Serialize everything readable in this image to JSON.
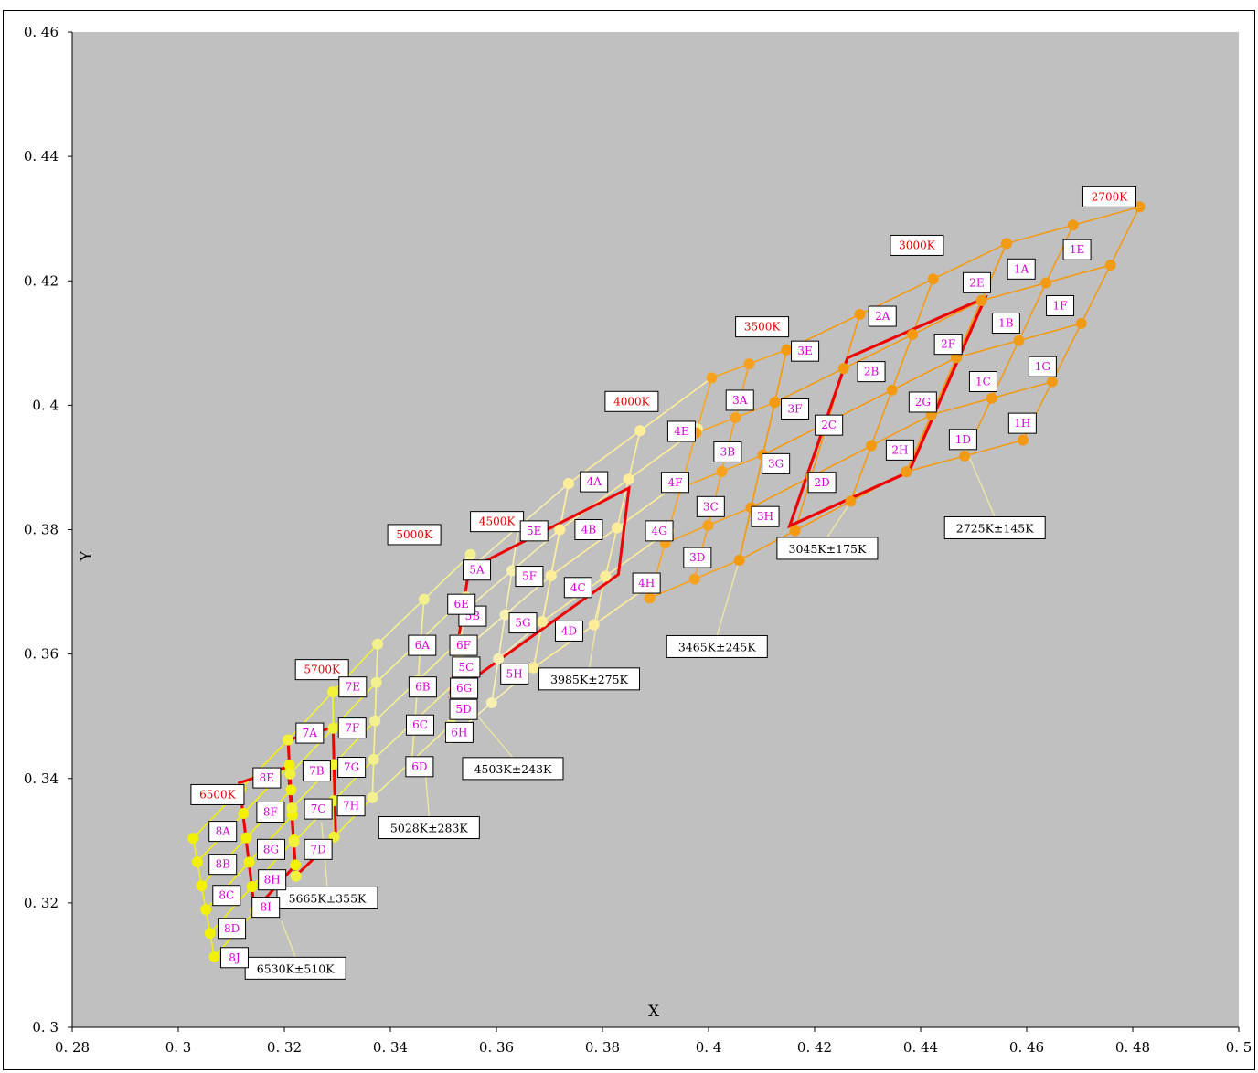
{
  "chart_data": {
    "type": "scatter",
    "title": "",
    "xlabel": "X",
    "ylabel": "Y",
    "xlim": [
      0.28,
      0.5
    ],
    "ylim": [
      0.3,
      0.46
    ],
    "x_ticks": [
      "0.28",
      "0.3",
      "0.32",
      "0.34",
      "0.36",
      "0.38",
      "0.4",
      "0.42",
      "0.44",
      "0.46",
      "0.48",
      "0.5"
    ],
    "y_ticks": [
      "0.3",
      "0.32",
      "0.34",
      "0.36",
      "0.38",
      "0.4",
      "0.42",
      "0.44",
      "0.46"
    ],
    "grid": false,
    "plot_background": "#c0c0c0",
    "colors": {
      "g6500": "#f2f200",
      "g5700": "#f2f238",
      "g5000": "#f3f090",
      "g4500": "#f8f0b0",
      "g4000": "#ffee99",
      "g3500": "#f6a21e",
      "g3000": "#f49a10",
      "g2700": "#f19a16",
      "quad": "#ee0000",
      "cct_text": "#e00000",
      "bin_text": "#d400d4"
    },
    "groups": [
      {
        "id": "g6500",
        "cct_label": "6500K",
        "cct_at": [
          0.3074,
          0.3374
        ],
        "corners": [
          [
            0.3028,
            0.3304
          ],
          [
            0.3207,
            0.3462
          ],
          [
            0.3221,
            0.3261
          ],
          [
            0.3068,
            0.3113
          ]
        ],
        "cols": 2,
        "rows": 5
      },
      {
        "id": "g5700",
        "cct_label": "5700K",
        "cct_at": [
          0.3271,
          0.3575
        ],
        "corners": [
          [
            0.3207,
            0.3462
          ],
          [
            0.3376,
            0.3616
          ],
          [
            0.3366,
            0.3369
          ],
          [
            0.3222,
            0.3243
          ]
        ],
        "cols": 2,
        "rows": 4
      },
      {
        "id": "g5000",
        "cct_label": "5000K",
        "cct_at": [
          0.3445,
          0.3792
        ],
        "corners": [
          [
            0.3376,
            0.3616
          ],
          [
            0.3551,
            0.376
          ],
          [
            0.3515,
            0.3487
          ],
          [
            0.3366,
            0.3369
          ]
        ],
        "cols": 2,
        "rows": 4
      },
      {
        "id": "g4500",
        "cct_label": "4500K",
        "cct_at": [
          0.3601,
          0.3813
        ],
        "corners": [
          [
            0.3548,
            0.3736
          ],
          [
            0.3736,
            0.3874
          ],
          [
            0.367,
            0.3578
          ],
          [
            0.3512,
            0.3465
          ]
        ],
        "cols": 2,
        "rows": 4
      },
      {
        "id": "g4000",
        "cct_label": "4000K",
        "cct_at": [
          0.3855,
          0.4006
        ],
        "corners": [
          [
            0.3736,
            0.3874
          ],
          [
            0.4006,
            0.4044
          ],
          [
            0.3898,
            0.3716
          ],
          [
            0.367,
            0.3578
          ]
        ],
        "cols": 2,
        "rows": 4
      },
      {
        "id": "g3500",
        "cct_label": "3500K",
        "cct_at": [
          0.4101,
          0.4126
        ],
        "corners": [
          [
            0.4006,
            0.4044
          ],
          [
            0.4147,
            0.4089
          ],
          [
            0.4058,
            0.3751
          ],
          [
            0.3889,
            0.369
          ]
        ],
        "cols": 2,
        "rows": 4
      },
      {
        "id": "g3000",
        "cct_label": "3000K",
        "cct_at": [
          0.4393,
          0.4257
        ],
        "corners": [
          [
            0.4147,
            0.4089
          ],
          [
            0.4562,
            0.426
          ],
          [
            0.4373,
            0.3893
          ],
          [
            0.4058,
            0.3751
          ]
        ],
        "cols": 3,
        "rows": 4
      },
      {
        "id": "g2700",
        "cct_label": "2700K",
        "cct_at": [
          0.4756,
          0.4335
        ],
        "corners": [
          [
            0.4562,
            0.426
          ],
          [
            0.4813,
            0.4319
          ],
          [
            0.4593,
            0.3944
          ],
          [
            0.4373,
            0.3893
          ]
        ],
        "cols": 2,
        "rows": 4
      }
    ],
    "bin_labels": [
      {
        "text": "1A",
        "at": [
          0.459,
          0.4219
        ]
      },
      {
        "text": "1B",
        "at": [
          0.4561,
          0.4132
        ]
      },
      {
        "text": "1C",
        "at": [
          0.4518,
          0.4038
        ]
      },
      {
        "text": "1D",
        "at": [
          0.448,
          0.3945
        ]
      },
      {
        "text": "1E",
        "at": [
          0.4695,
          0.425
        ]
      },
      {
        "text": "1F",
        "at": [
          0.4663,
          0.416
        ]
      },
      {
        "text": "1G",
        "at": [
          0.463,
          0.4062
        ]
      },
      {
        "text": "1H",
        "at": [
          0.4592,
          0.3971
        ]
      },
      {
        "text": "2A",
        "at": [
          0.4328,
          0.4143
        ]
      },
      {
        "text": "2B",
        "at": [
          0.4307,
          0.4054
        ]
      },
      {
        "text": "2C",
        "at": [
          0.4227,
          0.3968
        ]
      },
      {
        "text": "2D",
        "at": [
          0.4214,
          0.3876
        ]
      },
      {
        "text": "2E",
        "at": [
          0.4506,
          0.4197
        ]
      },
      {
        "text": "2F",
        "at": [
          0.4452,
          0.4098
        ]
      },
      {
        "text": "2G",
        "at": [
          0.4404,
          0.4005
        ]
      },
      {
        "text": "2H",
        "at": [
          0.4361,
          0.3928
        ]
      },
      {
        "text": "3A",
        "at": [
          0.4059,
          0.4008
        ]
      },
      {
        "text": "3B",
        "at": [
          0.4036,
          0.3925
        ]
      },
      {
        "text": "3C",
        "at": [
          0.4004,
          0.3837
        ]
      },
      {
        "text": "3D",
        "at": [
          0.3979,
          0.3755
        ]
      },
      {
        "text": "3E",
        "at": [
          0.4182,
          0.4087
        ]
      },
      {
        "text": "3F",
        "at": [
          0.4163,
          0.3994
        ]
      },
      {
        "text": "3G",
        "at": [
          0.4127,
          0.3906
        ]
      },
      {
        "text": "3H",
        "at": [
          0.4107,
          0.3821
        ]
      },
      {
        "text": "4A",
        "at": [
          0.3784,
          0.3877
        ]
      },
      {
        "text": "4B",
        "at": [
          0.3774,
          0.38
        ]
      },
      {
        "text": "4C",
        "at": [
          0.3754,
          0.3707
        ]
      },
      {
        "text": "4D",
        "at": [
          0.3737,
          0.3637
        ]
      },
      {
        "text": "4E",
        "at": [
          0.3949,
          0.3958
        ]
      },
      {
        "text": "4F",
        "at": [
          0.3937,
          0.3876
        ]
      },
      {
        "text": "4G",
        "at": [
          0.3907,
          0.3798
        ]
      },
      {
        "text": "4H",
        "at": [
          0.3883,
          0.3714
        ]
      },
      {
        "text": "5A",
        "at": [
          0.3563,
          0.3735
        ]
      },
      {
        "text": "5B",
        "at": [
          0.3555,
          0.3661
        ]
      },
      {
        "text": "5C",
        "at": [
          0.3543,
          0.3579
        ]
      },
      {
        "text": "5D",
        "at": [
          0.3538,
          0.3511
        ]
      },
      {
        "text": "5E",
        "at": [
          0.3671,
          0.3798
        ]
      },
      {
        "text": "5F",
        "at": [
          0.3662,
          0.3725
        ]
      },
      {
        "text": "5G",
        "at": [
          0.365,
          0.365
        ]
      },
      {
        "text": "5H",
        "at": [
          0.3634,
          0.3568
        ]
      },
      {
        "text": "6A",
        "at": [
          0.346,
          0.3614
        ]
      },
      {
        "text": "6B",
        "at": [
          0.3461,
          0.3547
        ]
      },
      {
        "text": "6C",
        "at": [
          0.3456,
          0.3486
        ]
      },
      {
        "text": "6D",
        "at": [
          0.3455,
          0.3419
        ]
      },
      {
        "text": "6E",
        "at": [
          0.3534,
          0.368
        ]
      },
      {
        "text": "6F",
        "at": [
          0.3538,
          0.3614
        ]
      },
      {
        "text": "6G",
        "at": [
          0.3539,
          0.3545
        ]
      },
      {
        "text": "6H",
        "at": [
          0.353,
          0.3474
        ]
      },
      {
        "text": "7A",
        "at": [
          0.3248,
          0.3473
        ]
      },
      {
        "text": "7B",
        "at": [
          0.3261,
          0.3412
        ]
      },
      {
        "text": "7C",
        "at": [
          0.3264,
          0.3351
        ]
      },
      {
        "text": "7D",
        "at": [
          0.3264,
          0.3286
        ]
      },
      {
        "text": "7E",
        "at": [
          0.3329,
          0.3547
        ]
      },
      {
        "text": "7F",
        "at": [
          0.3328,
          0.3481
        ]
      },
      {
        "text": "7G",
        "at": [
          0.3327,
          0.3418
        ]
      },
      {
        "text": "7H",
        "at": [
          0.3326,
          0.3356
        ]
      },
      {
        "text": "8A",
        "at": [
          0.3084,
          0.3315
        ]
      },
      {
        "text": "8B",
        "at": [
          0.3084,
          0.3262
        ]
      },
      {
        "text": "8C",
        "at": [
          0.3091,
          0.3212
        ]
      },
      {
        "text": "8D",
        "at": [
          0.3101,
          0.3159
        ]
      },
      {
        "text": "8E",
        "at": [
          0.3167,
          0.3401
        ]
      },
      {
        "text": "8F",
        "at": [
          0.3174,
          0.3346
        ]
      },
      {
        "text": "8G",
        "at": [
          0.3175,
          0.3286
        ]
      },
      {
        "text": "8H",
        "at": [
          0.3177,
          0.3237
        ]
      },
      {
        "text": "8I",
        "at": [
          0.3165,
          0.3193
        ]
      },
      {
        "text": "8J",
        "at": [
          0.3106,
          0.3112
        ]
      }
    ],
    "nominal_ranges": [
      {
        "label": "2725K±145K",
        "corners": [
          [
            0.4813,
            0.4319
          ],
          [
            0.4562,
            0.426
          ],
          [
            0.4373,
            0.3893
          ],
          [
            0.4593,
            0.3944
          ]
        ],
        "quad": [
          [
            0.4262,
            0.4076
          ],
          [
            0.4522,
            0.4173
          ],
          [
            0.4378,
            0.3893
          ],
          [
            0.4153,
            0.3806
          ]
        ],
        "text_at": [
          0.454,
          0.3803
        ],
        "leader_from": [
          0.4475,
          0.395
        ]
      },
      {
        "label": "3045K±175K",
        "corners": [],
        "quad": [
          [
            0.4262,
            0.4076
          ],
          [
            0.4522,
            0.4173
          ],
          [
            0.4378,
            0.3893
          ],
          [
            0.4153,
            0.3806
          ]
        ],
        "text_at": [
          0.4224,
          0.377
        ],
        "leader_from": [
          0.428,
          0.386
        ]
      },
      {
        "label": "3465K±245K",
        "corners": [],
        "quad": [],
        "text_at": [
          0.4016,
          0.3612
        ],
        "leader_from": [
          0.4058,
          0.3751
        ]
      },
      {
        "label": "3985K±275K",
        "corners": [],
        "quad": [
          [
            0.3548,
            0.3736
          ],
          [
            0.385,
            0.3867
          ],
          [
            0.383,
            0.3728
          ],
          [
            0.3513,
            0.3534
          ]
        ],
        "text_at": [
          0.3775,
          0.356
        ],
        "leader_from": [
          0.3795,
          0.368
        ]
      },
      {
        "label": "4503K±243K",
        "corners": [],
        "quad": [],
        "text_at": [
          0.3631,
          0.3416
        ],
        "leader_from": [
          0.3555,
          0.351
        ]
      },
      {
        "label": "5028K±283K",
        "corners": [],
        "quad": [],
        "text_at": [
          0.3473,
          0.3321
        ],
        "leader_from": [
          0.3465,
          0.342
        ]
      },
      {
        "label": "5665K±355K",
        "corners": [],
        "quad": [
          [
            0.3207,
            0.3462
          ],
          [
            0.3292,
            0.3482
          ],
          [
            0.3297,
            0.3305
          ],
          [
            0.3221,
            0.3243
          ]
        ],
        "text_at": [
          0.3281,
          0.3208
        ],
        "leader_from": [
          0.327,
          0.333
        ]
      },
      {
        "label": "6530K±510K",
        "corners": [],
        "quad": [
          [
            0.3115,
            0.3393
          ],
          [
            0.3207,
            0.3419
          ],
          [
            0.3221,
            0.3261
          ],
          [
            0.3144,
            0.3188
          ]
        ],
        "text_at": [
          0.3221,
          0.3095
        ],
        "leader_from": [
          0.3195,
          0.317
        ]
      }
    ]
  }
}
